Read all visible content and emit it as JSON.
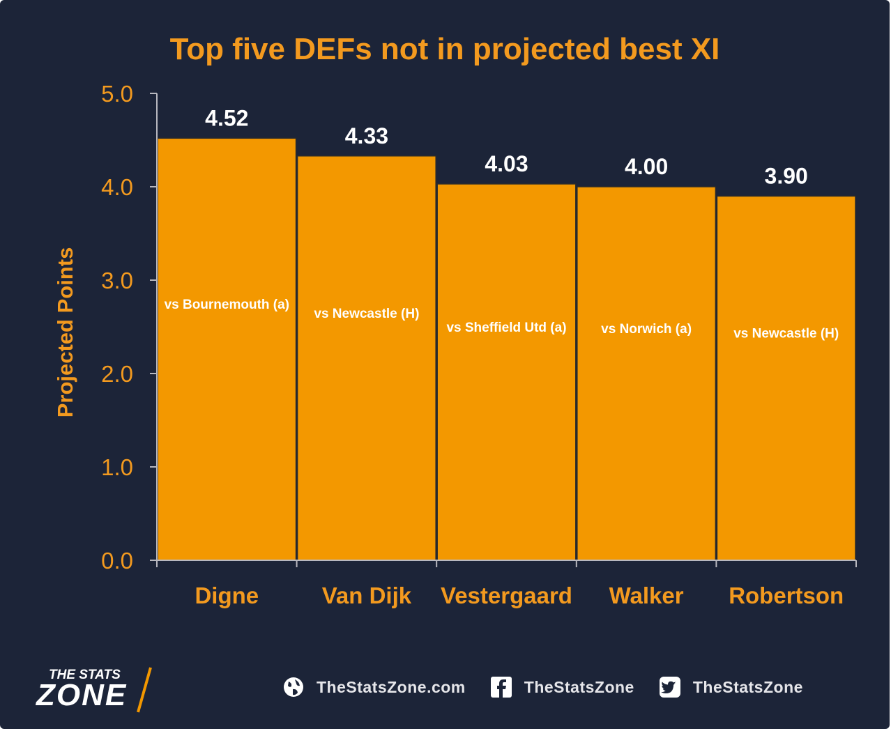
{
  "chart_data": {
    "type": "bar",
    "title": "Top five DEFs not in projected best XI",
    "ylabel": "Projected Points",
    "xlabel": "",
    "ylim": [
      0,
      5
    ],
    "yticks": [
      "0.0",
      "1.0",
      "2.0",
      "3.0",
      "4.0",
      "5.0"
    ],
    "categories": [
      "Digne",
      "Van Dijk",
      "Vestergaard",
      "Walker",
      "Robertson"
    ],
    "values": [
      4.52,
      4.33,
      4.03,
      4.0,
      3.9
    ],
    "value_labels": [
      "4.52",
      "4.33",
      "4.03",
      "4.00",
      "3.90"
    ],
    "annotations": [
      "vs Bournemouth (a)",
      "vs Newcastle (H)",
      "vs Sheffield Utd (a)",
      "vs Norwich (a)",
      "vs Newcastle (H)"
    ],
    "grid": false,
    "colors": {
      "bar": "#f39800",
      "bar_edge": "#2b2b2b",
      "axis_text": "#f39a1f",
      "value_text": "#ffffff",
      "background": "#1c2438"
    }
  },
  "footer": {
    "logo_line1": "THE STATS",
    "logo_line2": "ZONE",
    "links": [
      {
        "icon": "globe-icon",
        "label": "TheStatsZone.com"
      },
      {
        "icon": "facebook-icon",
        "label": "TheStatsZone"
      },
      {
        "icon": "twitter-icon",
        "label": "TheStatsZone"
      }
    ]
  }
}
